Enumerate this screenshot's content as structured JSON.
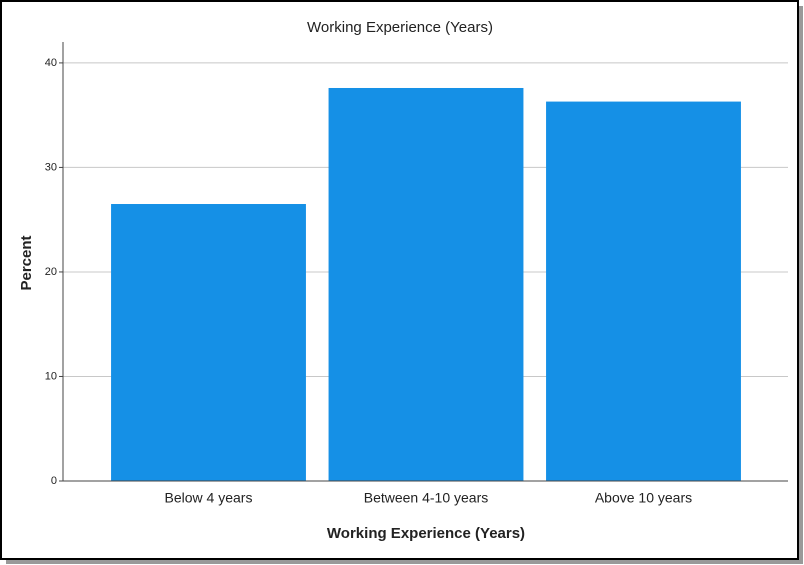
{
  "chart_data": {
    "type": "bar",
    "title": "Working Experience (Years)",
    "x_label": "Working Experience (Years)",
    "y_label": "Percent",
    "categories": [
      "Below 4 years",
      "Between 4-10 years",
      "Above 10 years"
    ],
    "values": [
      26.5,
      37.6,
      36.3
    ],
    "color": "#1590e6",
    "ylim": [
      0,
      42
    ],
    "yticks": [
      0,
      10,
      20,
      30,
      40
    ],
    "grid": true
  }
}
